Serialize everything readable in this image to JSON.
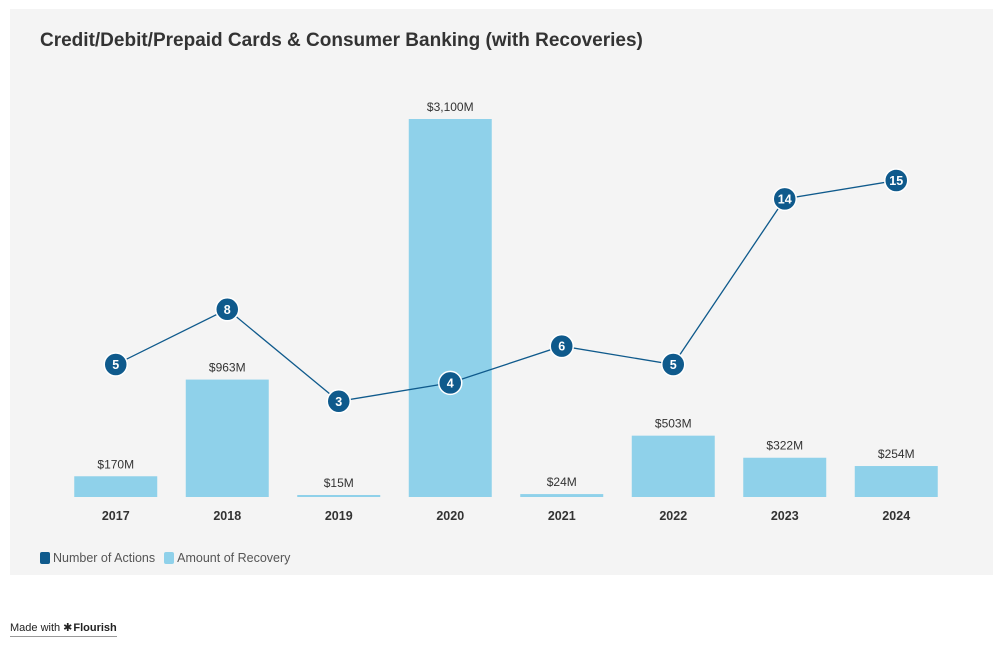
{
  "chart_data": {
    "type": "bar",
    "title": "Credit/Debit/Prepaid Cards & Consumer Banking (with Recoveries)",
    "categories": [
      "2017",
      "2018",
      "2019",
      "2020",
      "2021",
      "2022",
      "2023",
      "2024"
    ],
    "series": [
      {
        "name": "Amount of Recovery",
        "type": "bar",
        "color": "#8fd1ea",
        "values": [
          170,
          963,
          15,
          3100,
          24,
          503,
          322,
          254
        ],
        "labels": [
          "$170M",
          "$963M",
          "$15M",
          "$3,100M",
          "$24M",
          "$503M",
          "$322M",
          "$254M"
        ]
      },
      {
        "name": "Number of Actions",
        "type": "line",
        "color": "#0f5a8c",
        "values": [
          5,
          8,
          3,
          4,
          6,
          5,
          14,
          15
        ]
      }
    ],
    "xlabel": "",
    "ylabel": ""
  },
  "legend": {
    "actions_label": "Number of Actions",
    "recovery_label": "Amount of Recovery"
  },
  "footer": {
    "made_with": "Made with",
    "brand": "Flourish"
  }
}
